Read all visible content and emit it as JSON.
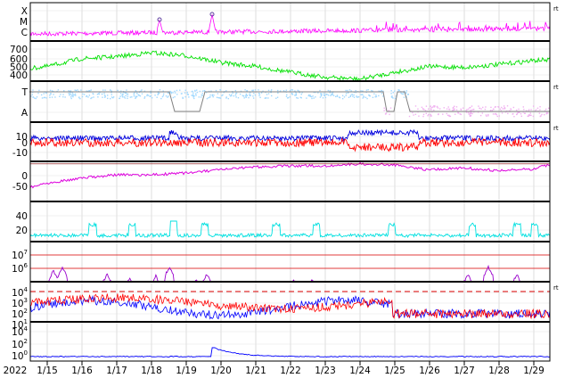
{
  "chart_data": [
    {
      "type": "line",
      "panel": "xray",
      "ytick_labels": [
        "X",
        "M",
        "C"
      ],
      "color": "#ff00ff",
      "side_tick": "rt",
      "flare_markers": [
        "1/18",
        "1/19"
      ]
    },
    {
      "type": "line",
      "panel": "solar_wind_speed",
      "ytick_labels": [
        "700",
        "600",
        "500",
        "400"
      ],
      "ylim": [
        330,
        740
      ],
      "color": "#00e000",
      "x": [
        "1/15",
        "1/16",
        "1/17",
        "1/18",
        "1/19",
        "1/20",
        "1/21",
        "1/22",
        "1/23",
        "1/24",
        "1/25",
        "1/26",
        "1/27",
        "1/28",
        "1/29"
      ],
      "values": [
        480,
        560,
        580,
        620,
        590,
        520,
        480,
        420,
        370,
        350,
        420,
        480,
        470,
        500,
        540
      ]
    },
    {
      "type": "line",
      "panel": "imf_direction",
      "ytick_labels": [
        "T",
        "A"
      ],
      "colors": [
        "#a0d8ff",
        "#f0b0f0",
        "#808080"
      ],
      "side_tick": "rt"
    },
    {
      "type": "line",
      "panel": "bz_bt",
      "ytick_labels": [
        "10",
        "0",
        "-10"
      ],
      "ylim": [
        -15,
        14
      ],
      "colors": [
        "#0000dd",
        "#ff0000"
      ],
      "side_tick": "rt"
    },
    {
      "type": "line",
      "panel": "dst",
      "ytick_labels": [
        "0",
        "-50"
      ],
      "ylim": [
        -75,
        5
      ],
      "color": "#dd00dd",
      "x": [
        "1/14",
        "1/15",
        "1/16",
        "1/17",
        "1/18",
        "1/19",
        "1/20",
        "1/21",
        "1/22",
        "1/23",
        "1/24",
        "1/25",
        "1/26",
        "1/27",
        "1/28",
        "1/29",
        "1/29.4"
      ],
      "values": [
        -55,
        -38,
        -28,
        -22,
        -22,
        -18,
        -12,
        -6,
        -4,
        -4,
        0,
        -2,
        -12,
        -8,
        -14,
        -10,
        -2
      ]
    },
    {
      "type": "line",
      "panel": "density",
      "ytick_labels": [
        "40",
        "20"
      ],
      "ylim": [
        0,
        55
      ],
      "color": "#00e0e0"
    },
    {
      "type": "line",
      "panel": "electron_flux",
      "ytick_labels": [
        "10^7",
        "10^6"
      ],
      "color": "#9900cc"
    },
    {
      "type": "line",
      "panel": "proton_flux",
      "ytick_labels": [
        "10^4",
        "10^3",
        "10^2",
        "10^1"
      ],
      "colors": [
        "#0000ff",
        "#ff0000"
      ],
      "side_tick": "rt"
    },
    {
      "type": "line",
      "panel": "neutron",
      "ytick_labels": [
        "10^4",
        "10^2",
        "10^0"
      ],
      "color": "#0000ff"
    }
  ],
  "xaxis": {
    "year": "2022",
    "ticks": [
      "1/15",
      "1/16",
      "1/17",
      "1/18",
      "1/19",
      "1/20",
      "1/21",
      "1/22",
      "1/23",
      "1/24",
      "1/25",
      "1/26",
      "1/27",
      "1/28",
      "1/29"
    ]
  }
}
